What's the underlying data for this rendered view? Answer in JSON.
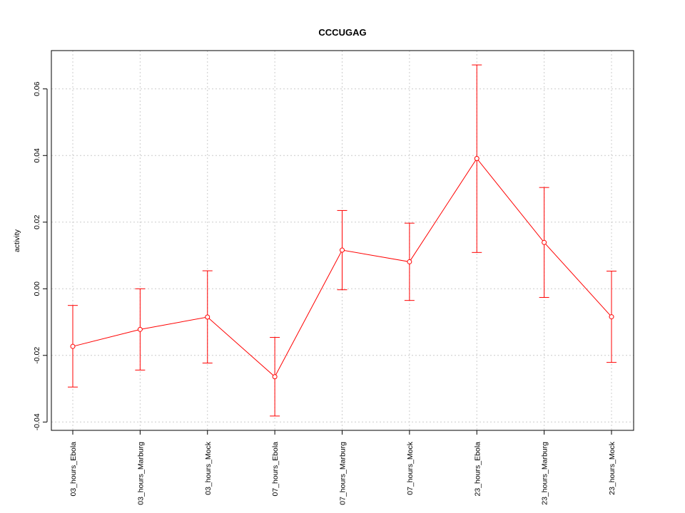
{
  "chart_data": {
    "type": "line",
    "title": "CCCUGAG",
    "ylabel": "activity",
    "xlabel": "",
    "categories": [
      "03_hours_Ebola",
      "03_hours_Marburg",
      "03_hours_Mock",
      "07_hours_Ebola",
      "07_hours_Marburg",
      "07_hours_Mock",
      "23_hours_Ebola",
      "23_hours_Marburg",
      "23_hours_Mock"
    ],
    "series": [
      {
        "values": [
          -0.0173,
          -0.0122,
          -0.0085,
          -0.0264,
          0.0116,
          0.0081,
          0.0391,
          0.0139,
          -0.0084
        ],
        "upper": [
          -0.005,
          0.0,
          0.0054,
          -0.0146,
          0.0235,
          0.0197,
          0.0672,
          0.0304,
          0.0053
        ],
        "lower": [
          -0.0295,
          -0.0244,
          -0.0223,
          -0.0382,
          -0.0003,
          -0.0035,
          0.0109,
          -0.0026,
          -0.0221
        ],
        "color": "#ff0000"
      }
    ],
    "yticks": [
      -0.04,
      -0.02,
      0.0,
      0.02,
      0.04,
      0.06
    ],
    "ytick_labels": [
      "-0.04",
      "-0.02",
      "0.00",
      "0.02",
      "0.04",
      "0.06"
    ],
    "ylim": [
      -0.0425,
      0.0715
    ],
    "grid": true
  }
}
